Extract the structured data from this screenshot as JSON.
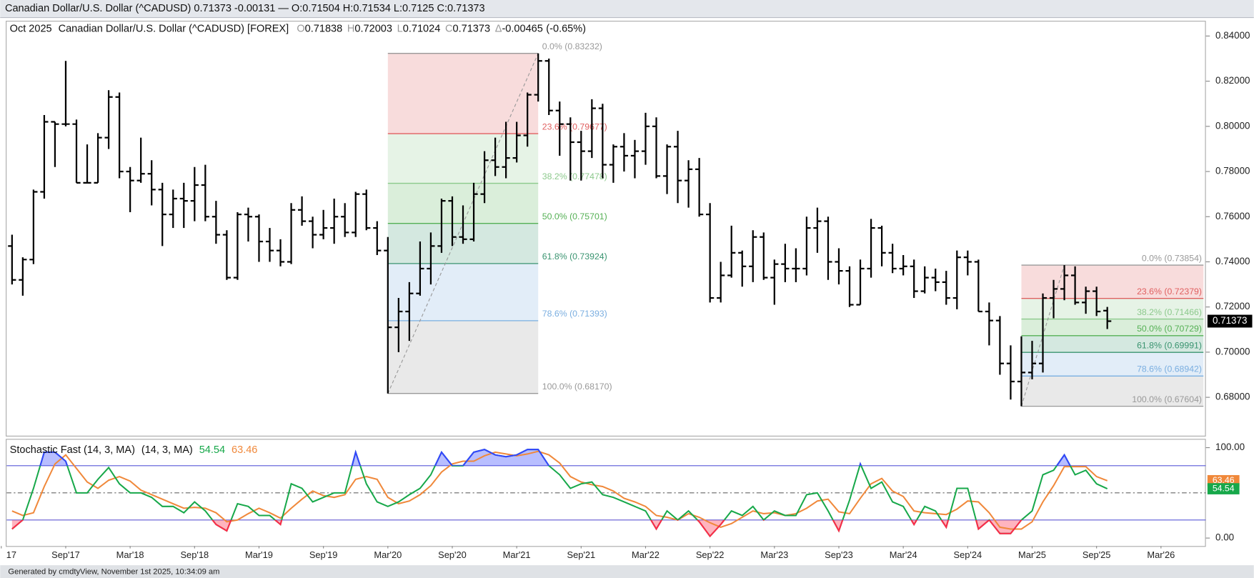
{
  "footer": "Generated by cmdtyView, November 1st 2025, 10:34:09 am",
  "chart_data": [
    {
      "type": "ohlc",
      "title": "Canadian Dollar/U.S. Dollar (^CADUSD) 0.71373 -0.00131 — O:0.71504 H:0.71534 L:0.7125 C:0.71373",
      "period": "Oct 2025",
      "subtitle": "Canadian Dollar/U.S. Dollar (^CADUSD) [FOREX]",
      "ohlc_labels": [
        "O",
        "H",
        "L",
        "C",
        "Δ"
      ],
      "change": -0.00465,
      "change_pct_label": "(-0.65%)",
      "color": "#000000",
      "xlim": [
        "2017-03",
        "2026-07"
      ],
      "ylim": [
        0.663,
        0.8464
      ],
      "yticks": [
        {
          "value": 0.84,
          "label": "0.84000"
        },
        {
          "value": 0.82,
          "label": "0.82000"
        },
        {
          "value": 0.8,
          "label": "0.80000"
        },
        {
          "value": 0.78,
          "label": "0.78000"
        },
        {
          "value": 0.76,
          "label": "0.76000"
        },
        {
          "value": 0.74,
          "label": "0.74000"
        },
        {
          "value": 0.72,
          "label": "0.72000"
        },
        {
          "value": 0.7,
          "label": "0.70000"
        },
        {
          "value": 0.68,
          "label": "0.68000"
        }
      ],
      "x": [
        "2017-04",
        "2017-05",
        "2017-06",
        "2017-07",
        "2017-08",
        "2017-09",
        "2017-10",
        "2017-11",
        "2017-12",
        "2018-01",
        "2018-02",
        "2018-03",
        "2018-04",
        "2018-05",
        "2018-06",
        "2018-07",
        "2018-08",
        "2018-09",
        "2018-10",
        "2018-11",
        "2018-12",
        "2019-01",
        "2019-02",
        "2019-03",
        "2019-04",
        "2019-05",
        "2019-06",
        "2019-07",
        "2019-08",
        "2019-09",
        "2019-10",
        "2019-11",
        "2019-12",
        "2020-01",
        "2020-02",
        "2020-03",
        "2020-04",
        "2020-05",
        "2020-06",
        "2020-07",
        "2020-08",
        "2020-09",
        "2020-10",
        "2020-11",
        "2020-12",
        "2021-01",
        "2021-02",
        "2021-03",
        "2021-04",
        "2021-05",
        "2021-06",
        "2021-07",
        "2021-08",
        "2021-09",
        "2021-10",
        "2021-11",
        "2021-12",
        "2022-01",
        "2022-02",
        "2022-03",
        "2022-04",
        "2022-05",
        "2022-06",
        "2022-07",
        "2022-08",
        "2022-09",
        "2022-10",
        "2022-11",
        "2022-12",
        "2023-01",
        "2023-02",
        "2023-03",
        "2023-04",
        "2023-05",
        "2023-06",
        "2023-07",
        "2023-08",
        "2023-09",
        "2023-10",
        "2023-11",
        "2023-12",
        "2024-01",
        "2024-02",
        "2024-03",
        "2024-04",
        "2024-05",
        "2024-06",
        "2024-07",
        "2024-08",
        "2024-09",
        "2024-10",
        "2024-11",
        "2024-12",
        "2025-01",
        "2025-02",
        "2025-03",
        "2025-04",
        "2025-05",
        "2025-06",
        "2025-07",
        "2025-08",
        "2025-09",
        "2025-10"
      ],
      "open": [
        0.747,
        0.732,
        0.741,
        0.771,
        0.802,
        0.801,
        0.801,
        0.775,
        0.775,
        0.795,
        0.813,
        0.78,
        0.776,
        0.779,
        0.772,
        0.761,
        0.768,
        0.767,
        0.774,
        0.76,
        0.752,
        0.733,
        0.761,
        0.76,
        0.749,
        0.745,
        0.74,
        0.763,
        0.758,
        0.752,
        0.755,
        0.76,
        0.753,
        0.77,
        0.755,
        0.745,
        0.711,
        0.718,
        0.726,
        0.737,
        0.747,
        0.767,
        0.751,
        0.75,
        0.77,
        0.785,
        0.782,
        0.786,
        0.796,
        0.814,
        0.829,
        0.807,
        0.801,
        0.793,
        0.789,
        0.808,
        0.783,
        0.791,
        0.787,
        0.789,
        0.8,
        0.778,
        0.791,
        0.776,
        0.781,
        0.761,
        0.724,
        0.734,
        0.744,
        0.738,
        0.751,
        0.733,
        0.739,
        0.737,
        0.737,
        0.755,
        0.758,
        0.74,
        0.736,
        0.721,
        0.737,
        0.755,
        0.744,
        0.737,
        0.738,
        0.727,
        0.733,
        0.731,
        0.724,
        0.742,
        0.74,
        0.718,
        0.714,
        0.695,
        0.687,
        0.691,
        0.695,
        0.724,
        0.728,
        0.734,
        0.722,
        0.727,
        0.71838
      ],
      "high": [
        0.752,
        0.742,
        0.772,
        0.805,
        0.802,
        0.829,
        0.803,
        0.792,
        0.797,
        0.816,
        0.815,
        0.782,
        0.795,
        0.785,
        0.775,
        0.772,
        0.775,
        0.782,
        0.783,
        0.767,
        0.754,
        0.762,
        0.764,
        0.761,
        0.755,
        0.75,
        0.766,
        0.769,
        0.76,
        0.763,
        0.768,
        0.766,
        0.771,
        0.772,
        0.758,
        0.751,
        0.724,
        0.731,
        0.749,
        0.753,
        0.768,
        0.769,
        0.765,
        0.775,
        0.789,
        0.795,
        0.802,
        0.802,
        0.815,
        0.83232,
        0.83,
        0.811,
        0.804,
        0.798,
        0.812,
        0.81,
        0.792,
        0.797,
        0.794,
        0.806,
        0.804,
        0.792,
        0.798,
        0.785,
        0.786,
        0.766,
        0.74,
        0.756,
        0.745,
        0.754,
        0.753,
        0.741,
        0.748,
        0.746,
        0.76,
        0.764,
        0.76,
        0.746,
        0.738,
        0.741,
        0.759,
        0.756,
        0.748,
        0.743,
        0.741,
        0.738,
        0.737,
        0.736,
        0.745,
        0.745,
        0.741,
        0.722,
        0.716,
        0.703,
        0.707,
        0.705,
        0.726,
        0.732,
        0.73854,
        0.738,
        0.729,
        0.729,
        0.72003
      ],
      "low": [
        0.73,
        0.725,
        0.739,
        0.768,
        0.782,
        0.8,
        0.775,
        0.775,
        0.775,
        0.79,
        0.777,
        0.762,
        0.775,
        0.765,
        0.747,
        0.755,
        0.755,
        0.758,
        0.758,
        0.748,
        0.732,
        0.732,
        0.749,
        0.74,
        0.74,
        0.738,
        0.739,
        0.756,
        0.746,
        0.75,
        0.748,
        0.751,
        0.751,
        0.754,
        0.743,
        0.6817,
        0.7,
        0.705,
        0.725,
        0.73,
        0.744,
        0.747,
        0.748,
        0.749,
        0.766,
        0.778,
        0.777,
        0.784,
        0.791,
        0.811,
        0.805,
        0.787,
        0.776,
        0.776,
        0.786,
        0.777,
        0.775,
        0.78,
        0.777,
        0.783,
        0.777,
        0.77,
        0.766,
        0.764,
        0.76,
        0.722,
        0.722,
        0.733,
        0.729,
        0.731,
        0.732,
        0.721,
        0.731,
        0.731,
        0.734,
        0.744,
        0.732,
        0.73,
        0.72,
        0.721,
        0.733,
        0.738,
        0.735,
        0.734,
        0.724,
        0.726,
        0.727,
        0.721,
        0.719,
        0.734,
        0.718,
        0.703,
        0.69,
        0.679,
        0.67604,
        0.688,
        0.691,
        0.715,
        0.723,
        0.721,
        0.717,
        0.716,
        0.71024
      ],
      "close": [
        0.732,
        0.741,
        0.771,
        0.802,
        0.801,
        0.801,
        0.775,
        0.775,
        0.795,
        0.813,
        0.78,
        0.776,
        0.779,
        0.772,
        0.761,
        0.768,
        0.767,
        0.774,
        0.76,
        0.752,
        0.733,
        0.761,
        0.76,
        0.749,
        0.745,
        0.74,
        0.763,
        0.758,
        0.752,
        0.755,
        0.76,
        0.753,
        0.77,
        0.755,
        0.745,
        0.711,
        0.718,
        0.726,
        0.737,
        0.747,
        0.767,
        0.751,
        0.75,
        0.77,
        0.785,
        0.782,
        0.786,
        0.796,
        0.814,
        0.829,
        0.807,
        0.801,
        0.793,
        0.789,
        0.808,
        0.783,
        0.791,
        0.787,
        0.789,
        0.8,
        0.778,
        0.791,
        0.776,
        0.781,
        0.761,
        0.724,
        0.734,
        0.744,
        0.738,
        0.751,
        0.733,
        0.739,
        0.737,
        0.737,
        0.755,
        0.758,
        0.74,
        0.736,
        0.721,
        0.737,
        0.755,
        0.744,
        0.737,
        0.738,
        0.727,
        0.733,
        0.731,
        0.724,
        0.742,
        0.74,
        0.718,
        0.714,
        0.695,
        0.687,
        0.691,
        0.695,
        0.724,
        0.728,
        0.734,
        0.722,
        0.727,
        0.718,
        0.71373
      ],
      "fibs": [
        {
          "from": "2020-03",
          "to": "2021-05",
          "extend_right": false,
          "levels": [
            {
              "label": "0.0% (0.83232)",
              "value": 0.83232,
              "color": "#999999"
            },
            {
              "label": "23.6% (0.79677)",
              "value": 0.79677,
              "color": "#e06060"
            },
            {
              "label": "38.2% (0.77478)",
              "value": 0.77478,
              "color": "#8cc98c"
            },
            {
              "label": "50.0% (0.75701)",
              "value": 0.75701,
              "color": "#55b055"
            },
            {
              "label": "61.8% (0.73924)",
              "value": 0.73924,
              "color": "#3a9470"
            },
            {
              "label": "78.6% (0.71393)",
              "value": 0.71393,
              "color": "#7aaee0"
            },
            {
              "label": "100.0% (0.68170)",
              "value": 0.6817,
              "color": "#999999"
            }
          ]
        },
        {
          "from": "2025-02",
          "to": "2025-06",
          "extend_right": true,
          "levels": [
            {
              "label": "0.0% (0.73854)",
              "value": 0.73854,
              "color": "#999999"
            },
            {
              "label": "23.6% (0.72379)",
              "value": 0.72379,
              "color": "#e06060"
            },
            {
              "label": "38.2% (0.71466)",
              "value": 0.71466,
              "color": "#8cc98c"
            },
            {
              "label": "50.0% (0.70729)",
              "value": 0.70729,
              "color": "#55b055"
            },
            {
              "label": "61.8% (0.69991)",
              "value": 0.69991,
              "color": "#3a9470"
            },
            {
              "label": "78.6% (0.68942)",
              "value": 0.68942,
              "color": "#7aaee0"
            },
            {
              "label": "100.0% (0.67604)",
              "value": 0.67604,
              "color": "#999999"
            }
          ]
        }
      ]
    },
    {
      "type": "line",
      "title": "Stochastic Fast (14, 3, MA)",
      "subtitle": "(14, 3, MA)",
      "xlim": [
        "2017-03",
        "2026-07"
      ],
      "ylim": [
        -8.8,
        108.8
      ],
      "yticks": [
        {
          "value": 100,
          "label": "100.00"
        },
        {
          "value": 0,
          "label": "0.00"
        }
      ],
      "xticks": [
        {
          "value": "2017-03",
          "label": "17"
        },
        {
          "value": "2017-09",
          "label": "Sep'17"
        },
        {
          "value": "2018-03",
          "label": "Mar'18"
        },
        {
          "value": "2018-09",
          "label": "Sep'18"
        },
        {
          "value": "2019-03",
          "label": "Mar'19"
        },
        {
          "value": "2019-09",
          "label": "Sep'19"
        },
        {
          "value": "2020-03",
          "label": "Mar'20"
        },
        {
          "value": "2020-09",
          "label": "Sep'20"
        },
        {
          "value": "2021-03",
          "label": "Mar'21"
        },
        {
          "value": "2021-09",
          "label": "Sep'21"
        },
        {
          "value": "2022-03",
          "label": "Mar'22"
        },
        {
          "value": "2022-09",
          "label": "Sep'22"
        },
        {
          "value": "2023-03",
          "label": "Mar'23"
        },
        {
          "value": "2023-09",
          "label": "Sep'23"
        },
        {
          "value": "2024-03",
          "label": "Mar'24"
        },
        {
          "value": "2024-09",
          "label": "Sep'24"
        },
        {
          "value": "2025-03",
          "label": "Mar'25"
        },
        {
          "value": "2025-09",
          "label": "Sep'25"
        },
        {
          "value": "2026-03",
          "label": "Mar'26"
        }
      ],
      "overbought": 80,
      "oversold": 20,
      "midline": 50,
      "level_color": "#5a5ad8",
      "overbought_color": "#3344ff",
      "oversold_color": "#ff2848",
      "series": [
        {
          "color": "#17a84a",
          "values": [
            10,
            20,
            55,
            95,
            95,
            85,
            50,
            50,
            65,
            78,
            60,
            50,
            50,
            45,
            35,
            35,
            28,
            40,
            30,
            15,
            8,
            38,
            35,
            25,
            25,
            15,
            60,
            55,
            40,
            45,
            50,
            50,
            95,
            60,
            40,
            35,
            40,
            48,
            55,
            70,
            95,
            80,
            80,
            95,
            98,
            92,
            90,
            92,
            98,
            98,
            80,
            70,
            55,
            60,
            62,
            48,
            45,
            40,
            35,
            30,
            10,
            30,
            20,
            30,
            18,
            2,
            15,
            30,
            25,
            35,
            20,
            30,
            25,
            25,
            48,
            50,
            30,
            8,
            42,
            82,
            55,
            62,
            40,
            35,
            15,
            35,
            30,
            12,
            55,
            55,
            10,
            20,
            5,
            5,
            20,
            30,
            70,
            75,
            92,
            70,
            75,
            60,
            54.54
          ]
        },
        {
          "color": "#f0883a",
          "values": [
            30,
            25,
            28,
            57,
            82,
            92,
            77,
            62,
            55,
            64,
            68,
            63,
            53,
            48,
            43,
            38,
            33,
            34,
            33,
            28,
            18,
            20,
            27,
            33,
            28,
            22,
            33,
            43,
            52,
            47,
            45,
            48,
            65,
            68,
            65,
            45,
            38,
            41,
            48,
            58,
            73,
            82,
            85,
            85,
            91,
            95,
            93,
            91,
            93,
            96,
            92,
            83,
            68,
            62,
            59,
            57,
            52,
            44,
            40,
            35,
            25,
            23,
            20,
            27,
            23,
            17,
            12,
            16,
            23,
            30,
            27,
            28,
            25,
            27,
            33,
            41,
            43,
            29,
            27,
            44,
            60,
            66,
            52,
            46,
            30,
            28,
            27,
            26,
            32,
            41,
            40,
            28,
            12,
            10,
            10,
            18,
            40,
            58,
            79,
            79,
            79,
            68,
            63.46
          ]
        }
      ]
    }
  ]
}
